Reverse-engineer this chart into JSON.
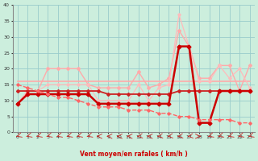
{
  "xlabel": "Vent moyen/en rafales ( km/h )",
  "xlim": [
    -0.5,
    23.5
  ],
  "ylim": [
    0,
    40
  ],
  "yticks": [
    0,
    5,
    10,
    15,
    20,
    25,
    30,
    35,
    40
  ],
  "xticks": [
    0,
    1,
    2,
    3,
    4,
    5,
    6,
    7,
    8,
    9,
    10,
    11,
    12,
    13,
    14,
    15,
    16,
    17,
    18,
    19,
    20,
    21,
    22,
    23
  ],
  "bg_color": "#cceedd",
  "grid_color": "#99cccc",
  "series": [
    {
      "x": [
        0,
        1,
        2,
        3,
        4,
        5,
        6,
        7,
        8,
        9,
        10,
        11,
        12,
        13,
        14,
        15,
        16,
        17,
        18,
        19,
        20,
        21,
        22,
        23
      ],
      "y": [
        16,
        16,
        16,
        16,
        16,
        16,
        16,
        16,
        16,
        16,
        16,
        16,
        16,
        16,
        16,
        16,
        16,
        16,
        16,
        16,
        16,
        16,
        16,
        16
      ],
      "color": "#ffaaaa",
      "lw": 1.2,
      "marker": null,
      "dashed": false
    },
    {
      "x": [
        0,
        1,
        2,
        3,
        4,
        5,
        6,
        7,
        8,
        9,
        10,
        11,
        12,
        13,
        14,
        15,
        16,
        17,
        18,
        19,
        20,
        21,
        22,
        23
      ],
      "y": [
        9,
        13,
        13,
        20,
        20,
        20,
        20,
        15,
        14,
        14,
        14,
        14,
        19,
        14,
        15,
        17,
        32,
        27,
        17,
        17,
        21,
        21,
        13,
        21
      ],
      "color": "#ffaaaa",
      "lw": 1.0,
      "marker": "D",
      "ms": 2.0,
      "dashed": false
    },
    {
      "x": [
        0,
        1,
        2,
        3,
        4,
        5,
        6,
        7,
        8,
        9,
        10,
        11,
        12,
        13,
        14,
        15,
        16,
        17,
        18,
        19,
        20,
        21,
        22,
        23
      ],
      "y": [
        9,
        13,
        13,
        15,
        15,
        15,
        15,
        15,
        10,
        10,
        10,
        10,
        15,
        10,
        14,
        15,
        37,
        27,
        16,
        16,
        21,
        17,
        20,
        14
      ],
      "color": "#ffbbbb",
      "lw": 0.9,
      "marker": "D",
      "ms": 1.8,
      "dashed": false
    },
    {
      "x": [
        0,
        1,
        2,
        3,
        4,
        5,
        6,
        7,
        8,
        9,
        10,
        11,
        12,
        13,
        14,
        15,
        16,
        17,
        18,
        19,
        20,
        21,
        22,
        23
      ],
      "y": [
        13,
        13,
        13,
        13,
        13,
        13,
        13,
        13,
        13,
        12,
        12,
        12,
        12,
        12,
        12,
        12,
        13,
        13,
        13,
        13,
        13,
        13,
        13,
        13
      ],
      "color": "#cc2222",
      "lw": 1.3,
      "marker": "D",
      "ms": 2.0,
      "dashed": false
    },
    {
      "x": [
        0,
        1,
        2,
        3,
        4,
        5,
        6,
        7,
        8,
        9,
        10,
        11,
        12,
        13,
        14,
        15,
        16,
        17,
        18,
        19,
        20,
        21,
        22,
        23
      ],
      "y": [
        9,
        12,
        12,
        12,
        12,
        12,
        12,
        12,
        9,
        9,
        9,
        9,
        9,
        9,
        9,
        9,
        27,
        27,
        3,
        3,
        13,
        13,
        13,
        13
      ],
      "color": "#cc0000",
      "lw": 1.8,
      "marker": "D",
      "ms": 2.5,
      "dashed": false
    },
    {
      "x": [
        0,
        1,
        2,
        3,
        4,
        5,
        6,
        7,
        8,
        9,
        10,
        11,
        12,
        13,
        14,
        15,
        16,
        17,
        18,
        19,
        20,
        21,
        22,
        23
      ],
      "y": [
        15,
        14,
        13,
        12,
        11,
        11,
        10,
        9,
        8,
        8,
        8,
        7,
        7,
        7,
        6,
        6,
        5,
        5,
        4,
        4,
        4,
        4,
        3,
        3
      ],
      "color": "#ff6666",
      "lw": 1.0,
      "marker": "D",
      "ms": 1.8,
      "dashed": true
    }
  ],
  "arrow_color": "#cc2222",
  "arrow_angles": [
    225,
    225,
    225,
    225,
    225,
    225,
    225,
    225,
    180,
    180,
    180,
    180,
    200,
    180,
    200,
    200,
    200,
    200,
    0,
    225,
    225,
    225,
    225,
    225
  ]
}
